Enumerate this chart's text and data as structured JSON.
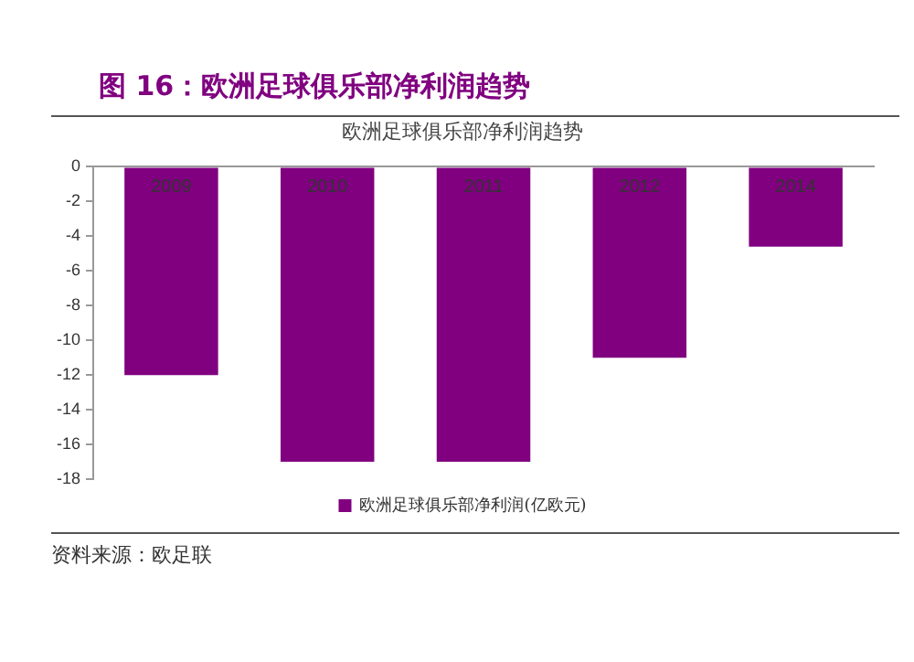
{
  "chart_data": {
    "type": "bar",
    "title": "图 16：欧洲足球俱乐部净利润趋势",
    "subtitle": "欧洲足球俱乐部净利润趋势",
    "categories": [
      "2009",
      "2010",
      "2011",
      "2012",
      "2014"
    ],
    "series": [
      {
        "name": "欧洲足球俱乐部净利润(亿欧元)",
        "color": "#800080",
        "values": [
          -12,
          -17,
          -17,
          -11,
          -4.6
        ]
      }
    ],
    "ylim": [
      -18,
      0
    ],
    "yticks": [
      0,
      -2,
      -4,
      -6,
      -8,
      -10,
      -12,
      -14,
      -16,
      -18
    ],
    "grid": false,
    "legend": "bottom",
    "annotations": [
      "资料来源：欧足联"
    ]
  }
}
